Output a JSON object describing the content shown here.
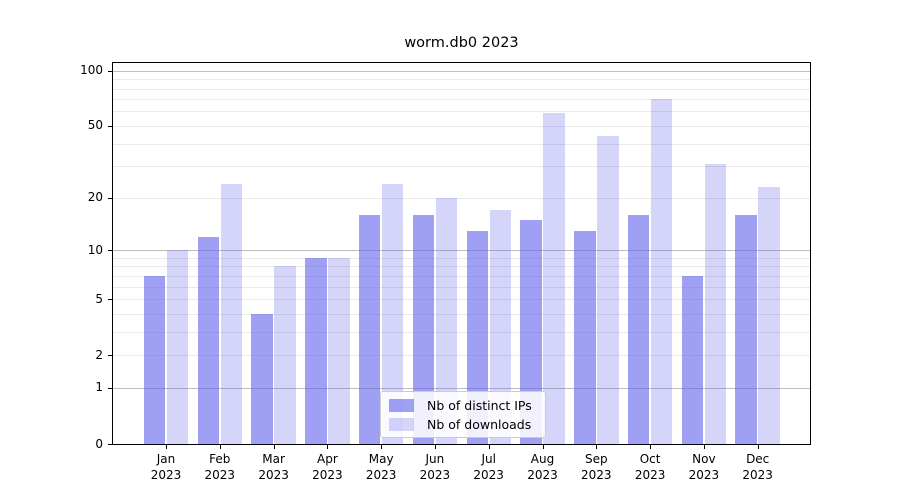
{
  "title": "worm.db0 2023",
  "chart_data": {
    "type": "bar",
    "title": "worm.db0 2023",
    "categories": [
      "Jan",
      "Feb",
      "Mar",
      "Apr",
      "May",
      "Jun",
      "Jul",
      "Aug",
      "Sep",
      "Oct",
      "Nov",
      "Dec"
    ],
    "year_label": "2023",
    "series": [
      {
        "name": "Nb of distinct IPs",
        "color": "rgba(100,100,235,0.62)",
        "values": [
          7,
          12,
          4,
          9,
          16,
          16,
          13,
          15,
          13,
          16,
          7,
          16
        ]
      },
      {
        "name": "Nb of downloads",
        "color": "rgba(100,100,235,0.27)",
        "values": [
          10,
          24,
          8,
          9,
          24,
          20,
          17,
          59,
          44,
          70,
          31,
          23
        ]
      }
    ],
    "xlabel": "",
    "ylabel": "",
    "y_axis": {
      "scale": "log1p",
      "ticks": [
        0,
        1,
        2,
        5,
        10,
        20,
        50,
        100
      ],
      "display_max": 110,
      "major_gridlines": [
        1,
        10,
        100
      ],
      "minor_gridlines": [
        2,
        3,
        4,
        5,
        6,
        7,
        8,
        9,
        20,
        30,
        40,
        50,
        60,
        70,
        80,
        90
      ]
    },
    "legend": {
      "position": "lower center inside",
      "items": [
        "Nb of distinct IPs",
        "Nb of downloads"
      ]
    },
    "grid": true
  },
  "colors": {
    "background": "#ffffff",
    "spine": "#000000",
    "major_grid": "#bdbdbd",
    "minor_grid": "#e9e9e9",
    "text": "#000000",
    "legend_border": "#cccccc",
    "legend_bg": "rgba(255,255,255,0.85)"
  }
}
